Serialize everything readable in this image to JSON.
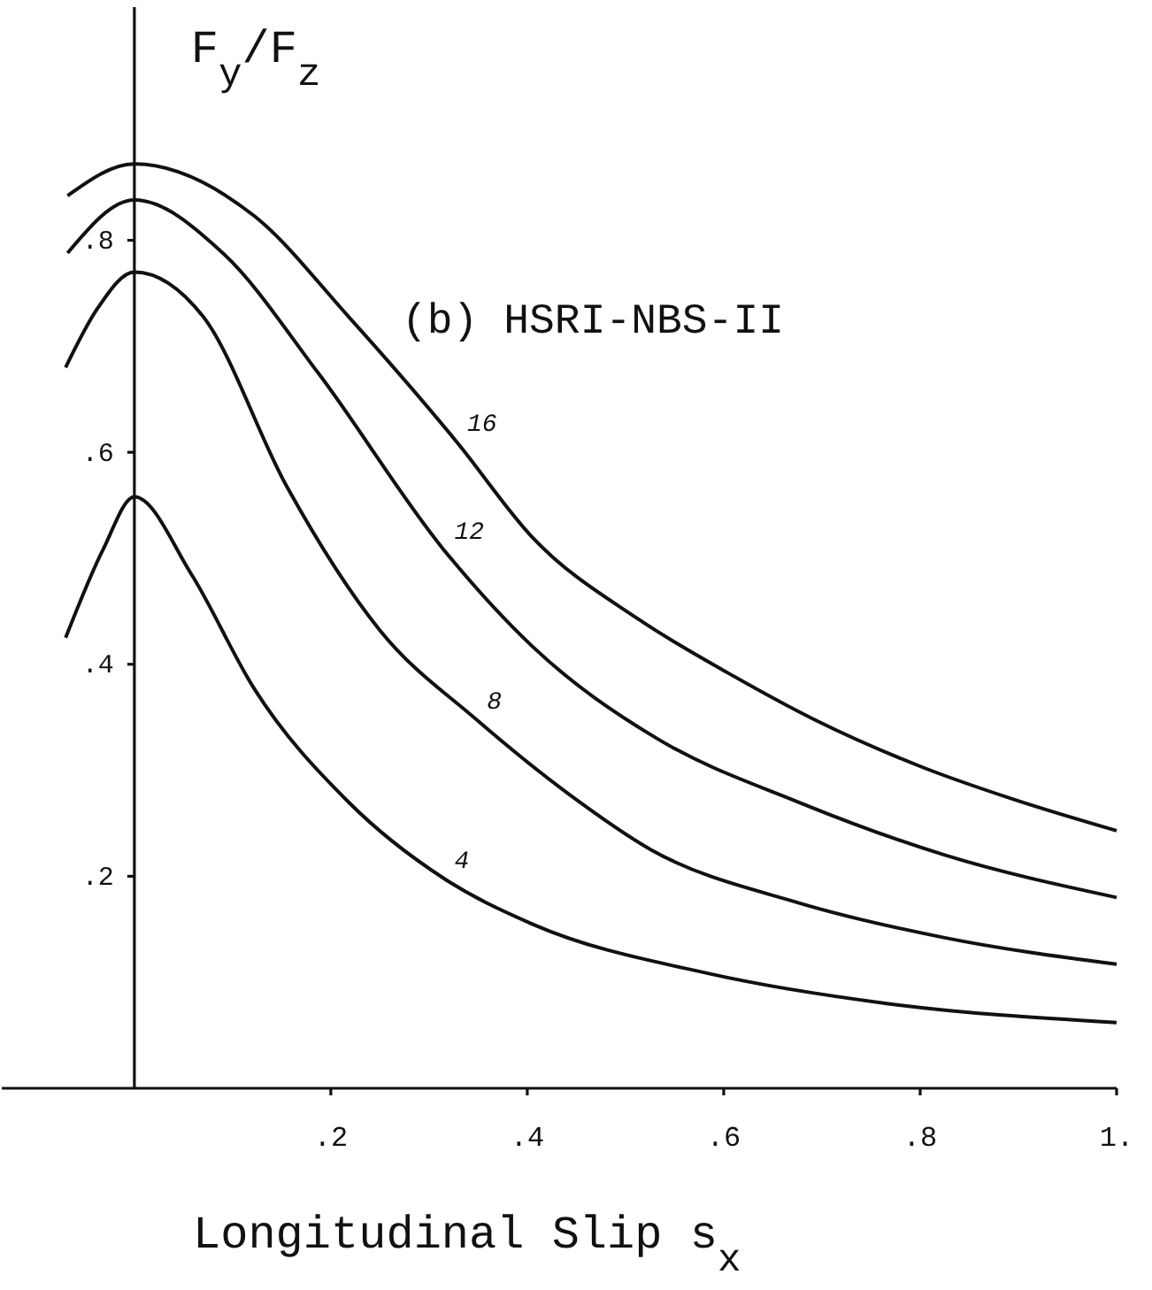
{
  "chart_data": {
    "type": "line",
    "xlabel": "Longitudinal Slip  s$_{x}$",
    "ylabel": "F$_{y}$/F$_{z}$",
    "annotations": [
      "(b) HSRI-NBS-II"
    ],
    "xlim": [
      -0.135,
      1.0
    ],
    "ylim": [
      0,
      1.02
    ],
    "xticks": [
      {
        "value": 0.2,
        "label": ".2"
      },
      {
        "value": 0.4,
        "label": ".4"
      },
      {
        "value": 0.6,
        "label": ".6"
      },
      {
        "value": 0.8,
        "label": ".8"
      },
      {
        "value": 1.0,
        "label": "1."
      }
    ],
    "yticks": [
      {
        "value": 0.2,
        "label": ".2"
      },
      {
        "value": 0.4,
        "label": ".4"
      },
      {
        "value": 0.6,
        "label": ".6"
      },
      {
        "value": 0.8,
        "label": ".8"
      }
    ],
    "grid": false,
    "legend": false,
    "marker": "none",
    "line_style": "solid",
    "series": [
      {
        "name": "16",
        "color": "#111111",
        "x": [
          -0.068,
          0,
          0.122,
          0.218,
          0.328,
          0.405,
          0.514,
          0.604,
          0.694,
          0.802,
          0.897,
          1.0
        ],
        "values": [
          0.842,
          0.872,
          0.823,
          0.728,
          0.61,
          0.52,
          0.442,
          0.392,
          0.347,
          0.303,
          0.272,
          0.243
        ]
      },
      {
        "name": "12",
        "color": "#111111",
        "x": [
          -0.068,
          0,
          0.09,
          0.187,
          0.315,
          0.405,
          0.532,
          0.676,
          0.825,
          1.0
        ],
        "values": [
          0.788,
          0.838,
          0.788,
          0.675,
          0.508,
          0.417,
          0.33,
          0.27,
          0.22,
          0.18
        ]
      },
      {
        "name": "8",
        "color": "#111111",
        "x": [
          -0.07,
          -0.038,
          0,
          0.07,
          0.155,
          0.25,
          0.348,
          0.443,
          0.526,
          0.676,
          0.825,
          1.0
        ],
        "values": [
          0.68,
          0.735,
          0.77,
          0.728,
          0.568,
          0.432,
          0.348,
          0.277,
          0.225,
          0.175,
          0.142,
          0.117
        ]
      },
      {
        "name": "4",
        "color": "#111111",
        "x": [
          -0.07,
          -0.032,
          0,
          0.058,
          0.122,
          0.218,
          0.315,
          0.405,
          0.586,
          0.766,
          1.0
        ],
        "values": [
          0.425,
          0.508,
          0.558,
          0.485,
          0.377,
          0.27,
          0.198,
          0.155,
          0.108,
          0.08,
          0.062
        ]
      }
    ]
  }
}
